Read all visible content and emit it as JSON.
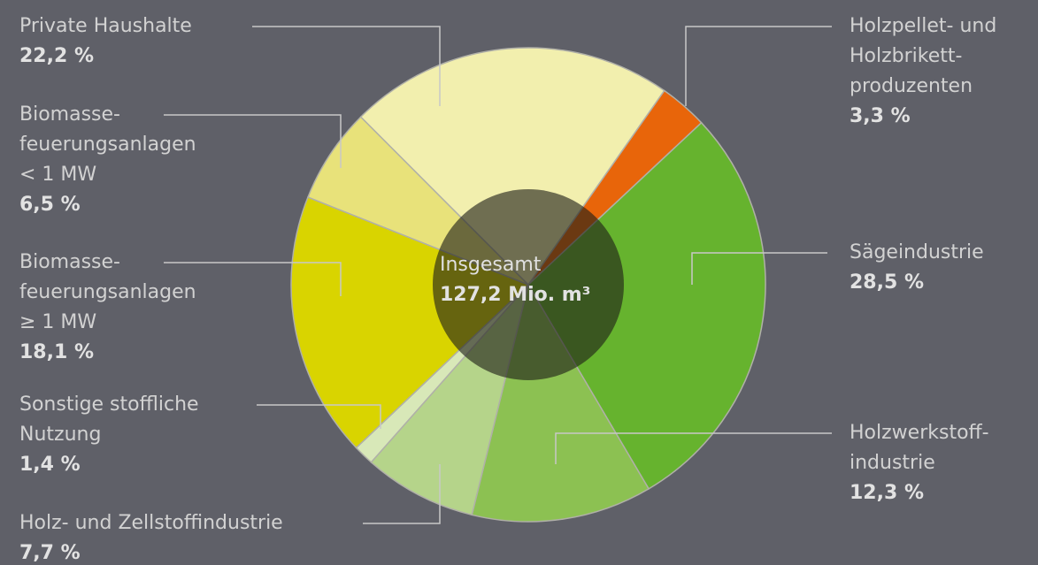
{
  "chart_data": {
    "type": "pie",
    "categories": [
      "Holzpellet- und\nHolzbrikett-\nproduzenten",
      "Sägeindustrie",
      "Holzwerkstoff-\nindustrie",
      "Holz- und Zellstoffindustrie",
      "Sonstige stoffliche\nNutzung",
      "Biomasse-\nfeuerungsanlagen\n≥ 1 MW",
      "Biomasse-\nfeuerungsanlagen\n< 1 MW",
      "Private Haushalte"
    ],
    "values": [
      3.3,
      28.5,
      12.3,
      7.7,
      1.4,
      18.1,
      6.5,
      22.2
    ],
    "value_labels": [
      "3,3 %",
      "28,5 %",
      "12,3 %",
      "7,7 %",
      "1,4 %",
      "18,1 %",
      "6,5 %",
      "22,2 %"
    ],
    "colors": [
      "#e8650a",
      "#66b32e",
      "#8cc152",
      "#b5d48a",
      "#d8e8b8",
      "#d9d400",
      "#e8e27a",
      "#f2efae"
    ],
    "center_label": "Insgesamt",
    "center_value": "127,2 Mio. m³"
  }
}
